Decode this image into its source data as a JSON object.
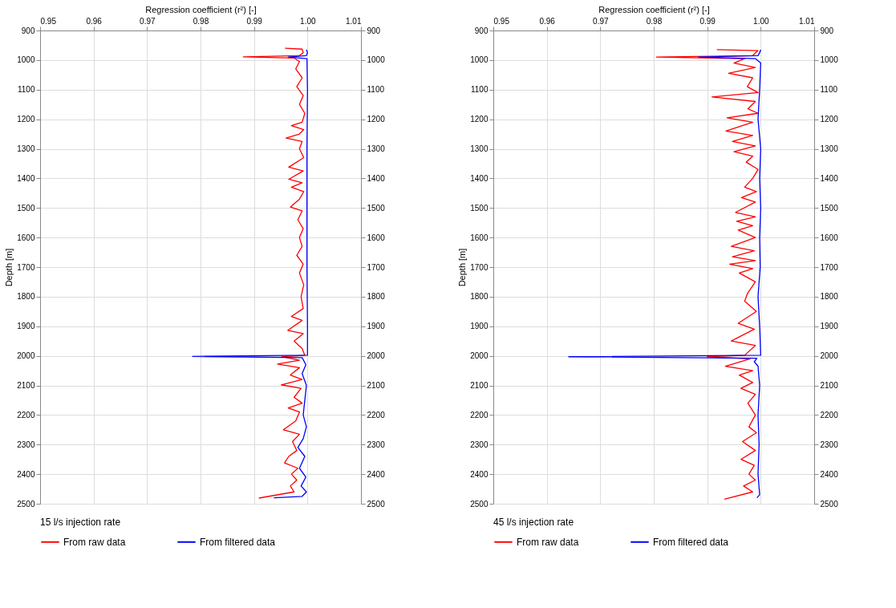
{
  "chart_data": [
    {
      "type": "line",
      "xlabel": "Regression coefficient (r²) [-]",
      "ylabel": "Depth [m]",
      "legend_title": "15 l/s injection rate",
      "xlim": [
        0.95,
        1.01
      ],
      "xticks": [
        0.95,
        0.96,
        0.97,
        0.98,
        0.99,
        {
          "value": 1.0,
          "label": "1.00"
        },
        1.01
      ],
      "ylim": [
        2500,
        900
      ],
      "yticks": [
        900,
        1000,
        1100,
        1200,
        1300,
        1400,
        1500,
        1600,
        1700,
        1800,
        1900,
        2000,
        2100,
        2200,
        2300,
        2400,
        2500
      ],
      "y2lim": [
        2500,
        900
      ],
      "y2ticks": [
        900,
        1000,
        1100,
        1200,
        1300,
        1400,
        1500,
        1600,
        1700,
        1800,
        1900,
        2000,
        2100,
        2200,
        2300,
        2400,
        2500
      ],
      "grid": true,
      "legend": "bottom",
      "line_style": "solid",
      "marker": "none",
      "series": [
        {
          "name": "From raw data",
          "color": "#ff0000",
          "x": [
            0.9958,
            0.999,
            0.9992,
            0.9985,
            0.988,
            0.9975,
            0.9985,
            0.9978,
            0.999,
            0.998,
            0.9992,
            0.9985,
            0.9995,
            0.999,
            0.997,
            0.9993,
            0.9985,
            0.996,
            0.999,
            0.9985,
            0.9993,
            0.9965,
            0.9992,
            0.9965,
            0.999,
            0.997,
            0.9993,
            0.9985,
            0.9968,
            0.999,
            0.9982,
            0.9992,
            0.9985,
            0.999,
            0.998,
            0.9992,
            0.9985,
            0.9993,
            0.9988,
            0.9992,
            0.997,
            0.999,
            0.9963,
            0.9992,
            0.9975,
            0.999,
            0.9995,
            0.9952,
            0.9985,
            0.9944,
            0.9985,
            0.9968,
            0.999,
            0.9951,
            0.9988,
            0.9975,
            0.999,
            0.9964,
            0.9985,
            0.9978,
            0.9955,
            0.9985,
            0.9972,
            0.998,
            0.9965,
            0.9957,
            0.9982,
            0.997,
            0.998,
            0.9968,
            0.9975,
            0.9909
          ],
          "values": [
            960,
            963,
            975,
            985,
            989,
            993,
            1005,
            1030,
            1060,
            1090,
            1120,
            1150,
            1180,
            1210,
            1222,
            1235,
            1250,
            1264,
            1275,
            1300,
            1330,
            1362,
            1375,
            1403,
            1415,
            1430,
            1445,
            1470,
            1497,
            1510,
            1540,
            1570,
            1600,
            1630,
            1660,
            1690,
            1720,
            1760,
            1800,
            1840,
            1867,
            1880,
            1914,
            1925,
            1950,
            1975,
            1998,
            2003,
            2015,
            2028,
            2040,
            2065,
            2080,
            2098,
            2110,
            2140,
            2160,
            2176,
            2190,
            2220,
            2250,
            2265,
            2290,
            2320,
            2340,
            2362,
            2380,
            2400,
            2420,
            2440,
            2460,
            2481
          ]
        },
        {
          "name": "From filtered data",
          "color": "#0000ff",
          "x": [
            0.9998,
            1.0,
            0.9998,
            0.9964,
            0.9999,
            1.0,
            0.9999,
            0.9999,
            0.9999,
            1.0,
            1.0,
            0.9785,
            0.999,
            0.9997,
            0.999,
            0.9998,
            0.9995,
            0.9992,
            0.9998,
            0.9992,
            0.9982,
            0.9995,
            0.9985,
            0.9997,
            0.9988,
            0.9998,
            0.999,
            0.9937
          ],
          "values": [
            965,
            975,
            985,
            990,
            995,
            1100,
            1300,
            1500,
            1700,
            1900,
            1998,
            2002,
            2006,
            2030,
            2060,
            2100,
            2150,
            2200,
            2240,
            2280,
            2310,
            2340,
            2380,
            2410,
            2440,
            2460,
            2475,
            2480
          ]
        }
      ]
    },
    {
      "type": "line",
      "xlabel": "Regression coefficient (r²) [-]",
      "ylabel": "Depth [m]",
      "legend_title": "45 l/s injection rate",
      "xlim": [
        0.95,
        1.01
      ],
      "xticks": [
        0.95,
        0.96,
        0.97,
        0.98,
        0.99,
        {
          "value": 1.0,
          "label": "1.00"
        },
        1.01
      ],
      "ylim": [
        2500,
        900
      ],
      "yticks": [
        900,
        1000,
        1100,
        1200,
        1300,
        1400,
        1500,
        1600,
        1700,
        1800,
        1900,
        2000,
        2100,
        2200,
        2300,
        2400,
        2500
      ],
      "y2lim": [
        2500,
        900
      ],
      "y2ticks": [
        900,
        1000,
        1100,
        1200,
        1300,
        1400,
        1500,
        1600,
        1700,
        1800,
        1900,
        2000,
        2100,
        2200,
        2300,
        2400,
        2500
      ],
      "grid": true,
      "legend": "bottom",
      "line_style": "solid",
      "marker": "none",
      "series": [
        {
          "name": "From raw data",
          "color": "#ff0000",
          "x": [
            0.9918,
            0.9995,
            0.9985,
            0.9805,
            0.997,
            0.995,
            0.999,
            0.994,
            0.9985,
            0.9975,
            0.9995,
            0.9909,
            0.999,
            0.9976,
            0.9995,
            0.9937,
            0.9985,
            0.9935,
            0.9985,
            0.9947,
            0.999,
            0.995,
            0.9985,
            0.9973,
            0.9995,
            0.9985,
            0.997,
            0.9992,
            0.9964,
            0.999,
            0.9953,
            0.999,
            0.9955,
            0.9985,
            0.9958,
            0.999,
            0.9945,
            0.9988,
            0.9947,
            0.999,
            0.9942,
            0.9985,
            0.996,
            0.999,
            0.9975,
            0.997,
            0.9992,
            0.9958,
            0.9988,
            0.9945,
            0.999,
            0.997,
            0.99,
            0.998,
            0.9934,
            0.9985,
            0.996,
            0.9985,
            0.9963,
            0.999,
            0.9976,
            0.999,
            0.9978,
            0.9992,
            0.9966,
            0.999,
            0.9963,
            0.9988,
            0.9978,
            0.999,
            0.9968,
            0.9985,
            0.9932
          ],
          "values": [
            965,
            968,
            985,
            990,
            995,
            1010,
            1025,
            1045,
            1060,
            1090,
            1110,
            1125,
            1140,
            1165,
            1180,
            1195,
            1210,
            1240,
            1255,
            1275,
            1290,
            1310,
            1325,
            1345,
            1370,
            1400,
            1430,
            1445,
            1465,
            1480,
            1515,
            1530,
            1545,
            1560,
            1575,
            1600,
            1630,
            1645,
            1665,
            1678,
            1690,
            1705,
            1720,
            1750,
            1790,
            1815,
            1850,
            1890,
            1910,
            1950,
            1965,
            1998,
            2003,
            2010,
            2035,
            2050,
            2065,
            2090,
            2110,
            2130,
            2160,
            2200,
            2240,
            2260,
            2290,
            2320,
            2350,
            2370,
            2400,
            2420,
            2440,
            2460,
            2485
          ]
        },
        {
          "name": "From filtered data",
          "color": "#0000ff",
          "x": [
            1.0,
            0.9998,
            0.9995,
            0.9884,
            0.999,
            1.0,
            0.9998,
            0.9995,
            1.0,
            0.9998,
            1.0,
            0.9998,
            0.9999,
            0.9995,
            0.9998,
            1.0,
            0.9641,
            0.9993,
            0.9988,
            0.9995,
            0.9998,
            0.9995,
            0.9997,
            0.9995,
            0.9998,
            0.9993
          ],
          "values": [
            965,
            975,
            985,
            990,
            995,
            1010,
            1100,
            1200,
            1300,
            1400,
            1500,
            1600,
            1700,
            1800,
            1900,
            1998,
            2003,
            2008,
            2020,
            2035,
            2100,
            2200,
            2300,
            2400,
            2470,
            2480
          ]
        }
      ]
    }
  ]
}
